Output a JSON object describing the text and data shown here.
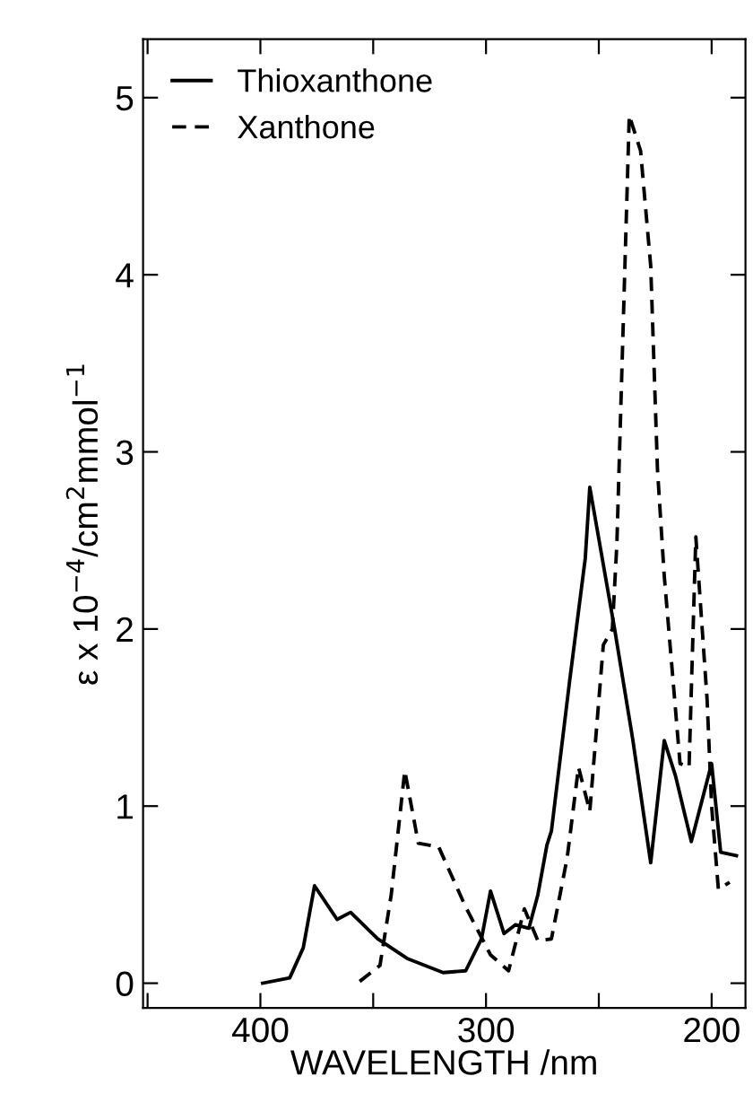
{
  "chart_data": {
    "type": "line",
    "xlabel": "WAVELENGTH /nm",
    "ylabel": "ε x 10$^{−4}$/cm$^{2}$mmol$^{−1}$",
    "xlim": [
      452,
      185
    ],
    "ylim": [
      -0.14,
      5.33
    ],
    "xticks": [
      {
        "value": 450,
        "label": null
      },
      400,
      {
        "value": 350,
        "label": null
      },
      300,
      {
        "value": 250,
        "label": null
      },
      200
    ],
    "yticks": [
      0,
      1,
      2,
      3,
      4,
      5
    ],
    "grid": false,
    "legend": "top left",
    "series": [
      {
        "name": "Thioxanthone",
        "color": "#000000",
        "line_style": "solid",
        "x": [
          399,
          387,
          381,
          376,
          366,
          360,
          348,
          335,
          319,
          309,
          302,
          298,
          292,
          287,
          281,
          277,
          273,
          271,
          263,
          256,
          254,
          243,
          235,
          227,
          221,
          216,
          209,
          200,
          196,
          189
        ],
        "values": [
          0,
          0.03,
          0.2,
          0.55,
          0.36,
          0.4,
          0.25,
          0.14,
          0.06,
          0.07,
          0.25,
          0.52,
          0.28,
          0.33,
          0.31,
          0.5,
          0.78,
          0.86,
          1.7,
          2.4,
          2.8,
          2.0,
          1.38,
          0.68,
          1.37,
          1.17,
          0.8,
          1.24,
          0.74,
          0.72
        ]
      },
      {
        "name": "Xanthone",
        "color": "#000000",
        "line_style": "dashed",
        "x": [
          356,
          347,
          342,
          336,
          330,
          321,
          309,
          298,
          290,
          283,
          277,
          271,
          264,
          259,
          254,
          248,
          244,
          242,
          236.5,
          231.5,
          227,
          224,
          221,
          214,
          210,
          207,
          202,
          200,
          197,
          192
        ],
        "values": [
          0.01,
          0.1,
          0.5,
          1.2,
          0.79,
          0.77,
          0.43,
          0.16,
          0.07,
          0.42,
          0.24,
          0.25,
          0.71,
          1.22,
          0.97,
          1.91,
          2.0,
          2.48,
          4.9,
          4.7,
          4.05,
          2.9,
          2.3,
          1.24,
          1.22,
          2.52,
          1.6,
          1.0,
          0.53,
          0.57
        ]
      }
    ]
  }
}
